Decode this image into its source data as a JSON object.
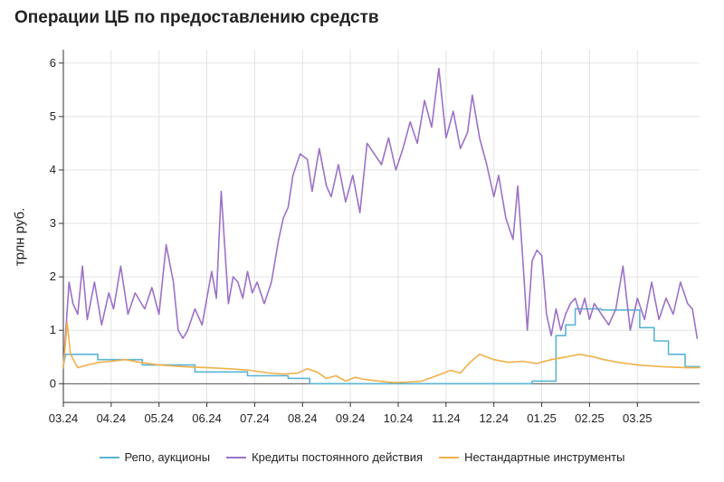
{
  "chart_data": {
    "type": "line",
    "title": "Операции ЦБ по предоставлению средств",
    "xlabel": "",
    "ylabel": "трлн руб.",
    "x_ticks": [
      "03.24",
      "04.24",
      "05.24",
      "06.24",
      "07.24",
      "08.24",
      "09.24",
      "10.24",
      "11.24",
      "12.24",
      "01.25",
      "02.25",
      "03.25"
    ],
    "y_ticks": [
      0,
      1,
      2,
      3,
      4,
      5,
      6
    ],
    "ylim": [
      -0.35,
      6.25
    ],
    "xlim": [
      0,
      13.3
    ],
    "x_unit": "months since 03.24",
    "grid": true,
    "legend_position": "bottom",
    "series": [
      {
        "name": "Репо, аукционы",
        "color": "#5ab4d6",
        "x": [
          0,
          0.05,
          0.72,
          0.72,
          1.65,
          1.65,
          2.75,
          2.75,
          3.85,
          3.85,
          4.7,
          4.7,
          5.15,
          5.15,
          9.8,
          9.8,
          10.3,
          10.3,
          10.5,
          10.5,
          10.7,
          10.7,
          11.25,
          11.25,
          12.05,
          12.05,
          12.35,
          12.35,
          12.65,
          12.65,
          13.0,
          13.0,
          13.3
        ],
        "values": [
          0.35,
          0.55,
          0.55,
          0.45,
          0.45,
          0.35,
          0.35,
          0.22,
          0.22,
          0.15,
          0.15,
          0.1,
          0.1,
          0.0,
          0.0,
          0.05,
          0.05,
          0.9,
          0.9,
          1.1,
          1.1,
          1.4,
          1.4,
          1.38,
          1.38,
          1.05,
          1.05,
          0.8,
          0.8,
          0.55,
          0.55,
          0.32,
          0.32
        ]
      },
      {
        "name": "Кредиты постоянного действия",
        "color": "#9b72c8",
        "x": [
          0,
          0.12,
          0.2,
          0.3,
          0.4,
          0.5,
          0.65,
          0.8,
          0.95,
          1.05,
          1.2,
          1.35,
          1.5,
          1.7,
          1.85,
          2.0,
          2.15,
          2.3,
          2.4,
          2.5,
          2.6,
          2.75,
          2.9,
          3.0,
          3.1,
          3.2,
          3.3,
          3.45,
          3.55,
          3.65,
          3.75,
          3.85,
          3.95,
          4.05,
          4.2,
          4.35,
          4.5,
          4.6,
          4.7,
          4.8,
          4.95,
          5.1,
          5.2,
          5.35,
          5.5,
          5.6,
          5.75,
          5.9,
          6.05,
          6.2,
          6.35,
          6.5,
          6.65,
          6.8,
          6.95,
          7.1,
          7.25,
          7.4,
          7.55,
          7.7,
          7.85,
          8.0,
          8.15,
          8.3,
          8.45,
          8.55,
          8.7,
          8.85,
          9.0,
          9.1,
          9.25,
          9.4,
          9.5,
          9.6,
          9.7,
          9.8,
          9.9,
          10.0,
          10.1,
          10.2,
          10.3,
          10.4,
          10.5,
          10.6,
          10.7,
          10.8,
          10.9,
          11.0,
          11.1,
          11.25,
          11.4,
          11.55,
          11.7,
          11.85,
          12.0,
          12.15,
          12.3,
          12.45,
          12.6,
          12.75,
          12.9,
          13.05,
          13.15,
          13.25
        ],
        "values": [
          0.3,
          1.9,
          1.5,
          1.3,
          2.2,
          1.2,
          1.9,
          1.1,
          1.7,
          1.4,
          2.2,
          1.3,
          1.7,
          1.4,
          1.8,
          1.3,
          2.6,
          1.9,
          1.0,
          0.85,
          1.0,
          1.4,
          1.1,
          1.6,
          2.1,
          1.6,
          3.6,
          1.5,
          2.0,
          1.9,
          1.6,
          2.1,
          1.7,
          1.9,
          1.5,
          1.9,
          2.7,
          3.1,
          3.3,
          3.9,
          4.3,
          4.2,
          3.6,
          4.4,
          3.7,
          3.5,
          4.1,
          3.4,
          3.9,
          3.2,
          4.5,
          4.3,
          4.1,
          4.6,
          4.0,
          4.4,
          4.9,
          4.5,
          5.3,
          4.8,
          5.9,
          4.6,
          5.1,
          4.4,
          4.7,
          5.4,
          4.6,
          4.1,
          3.5,
          3.9,
          3.1,
          2.7,
          3.7,
          2.4,
          1.0,
          2.3,
          2.5,
          2.4,
          1.3,
          0.9,
          1.4,
          1.0,
          1.3,
          1.5,
          1.6,
          1.3,
          1.6,
          1.2,
          1.5,
          1.3,
          1.1,
          1.4,
          2.2,
          1.0,
          1.6,
          1.2,
          1.9,
          1.2,
          1.6,
          1.3,
          1.9,
          1.5,
          1.4,
          0.85
        ]
      },
      {
        "name": "Нестандартные инструменты",
        "color": "#f0b04a",
        "x": [
          0,
          0.08,
          0.15,
          0.3,
          0.5,
          0.75,
          1.0,
          1.3,
          1.6,
          2.0,
          2.5,
          3.0,
          3.5,
          3.9,
          4.3,
          4.6,
          4.9,
          5.1,
          5.3,
          5.5,
          5.7,
          5.9,
          6.1,
          6.3,
          6.6,
          6.9,
          7.2,
          7.5,
          7.8,
          8.1,
          8.3,
          8.5,
          8.7,
          9.0,
          9.3,
          9.6,
          9.9,
          10.2,
          10.5,
          10.8,
          11.1,
          11.3,
          11.6,
          12.0,
          12.5,
          13.0,
          13.3
        ],
        "values": [
          0.3,
          1.15,
          0.55,
          0.3,
          0.35,
          0.4,
          0.42,
          0.45,
          0.4,
          0.35,
          0.32,
          0.3,
          0.28,
          0.25,
          0.2,
          0.18,
          0.2,
          0.28,
          0.22,
          0.1,
          0.15,
          0.05,
          0.12,
          0.08,
          0.05,
          0.02,
          0.03,
          0.05,
          0.15,
          0.25,
          0.2,
          0.4,
          0.55,
          0.45,
          0.4,
          0.42,
          0.38,
          0.45,
          0.5,
          0.55,
          0.5,
          0.45,
          0.4,
          0.35,
          0.32,
          0.3,
          0.3
        ]
      }
    ]
  }
}
